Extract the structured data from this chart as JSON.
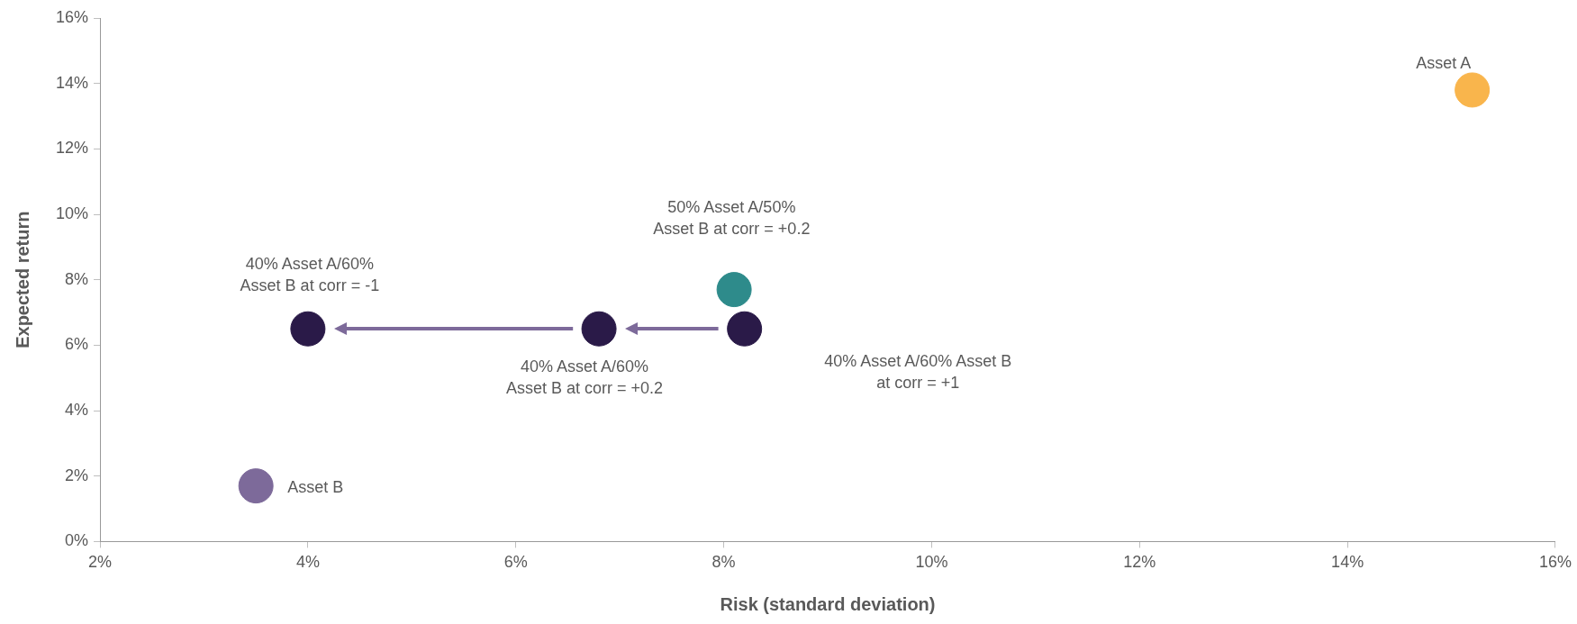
{
  "chart_data": {
    "type": "scatter",
    "xlabel": "Risk (standard deviation)",
    "ylabel": "Expected return",
    "x": [
      15.2,
      3.5,
      8.1,
      4.0,
      6.8,
      8.2
    ],
    "values": [
      13.8,
      1.7,
      7.7,
      6.5,
      6.5,
      6.5
    ],
    "colors": [
      "#f9b54c",
      "#7d6a9a",
      "#2e8b8b",
      "#2a1a48",
      "#2a1a48",
      "#2a1a48"
    ],
    "xlim": [
      2,
      16
    ],
    "ylim": [
      0,
      16
    ],
    "xticks": [
      {
        "value": 2,
        "label": "2%"
      },
      {
        "value": 4,
        "label": "4%"
      },
      {
        "value": 6,
        "label": "6%"
      },
      {
        "value": 8,
        "label": "8%"
      },
      {
        "value": 10,
        "label": "10%"
      },
      {
        "value": 12,
        "label": "12%"
      },
      {
        "value": 14,
        "label": "14%"
      },
      {
        "value": 16,
        "label": "16%"
      }
    ],
    "yticks": [
      {
        "value": 0,
        "label": "0%"
      },
      {
        "value": 2,
        "label": "2%"
      },
      {
        "value": 4,
        "label": "4%"
      },
      {
        "value": 6,
        "label": "6%"
      },
      {
        "value": 8,
        "label": "8%"
      },
      {
        "value": 10,
        "label": "10%"
      },
      {
        "value": 12,
        "label": "12%"
      },
      {
        "value": 14,
        "label": "14%"
      },
      {
        "value": 16,
        "label": "16%"
      }
    ],
    "grid": false,
    "legend": false,
    "marker": "circle",
    "annotations": [
      {
        "text": "Asset A",
        "x": 15.2,
        "y": 13.8
      },
      {
        "text": "Asset B",
        "x": 3.5,
        "y": 1.7
      },
      "50% Asset A/50%\nAsset B at corr = +0.2",
      {
        "text": "40% Asset A/60%\nAsset B at corr = -1",
        "x": 4.0,
        "y": 6.5
      },
      {
        "text": "40% Asset A/60%\nAsset B at corr = +0.2",
        "x": 6.8,
        "y": 6.5
      },
      "40% Asset A/60% Asset B\nat corr = +1"
    ]
  }
}
